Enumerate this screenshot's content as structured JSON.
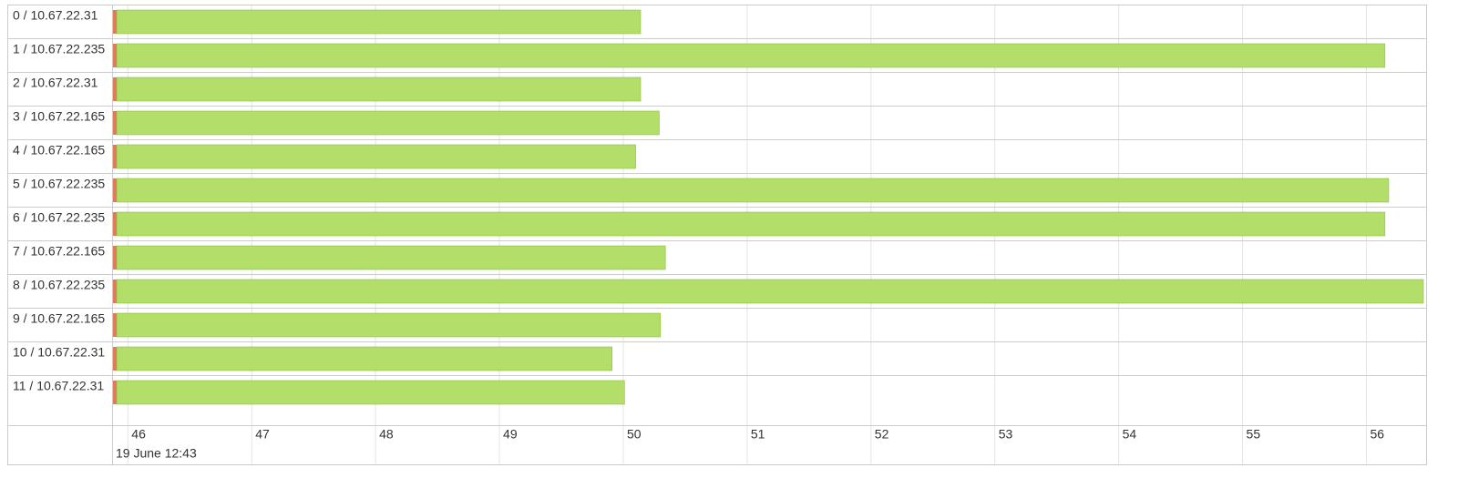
{
  "chart_data": {
    "type": "timeline",
    "categories": [
      "0 / 10.67.22.31",
      "1 / 10.67.22.235",
      "2 / 10.67.22.31",
      "3 / 10.67.22.165",
      "4 / 10.67.22.165",
      "5 / 10.67.22.235",
      "6 / 10.67.22.235",
      "7 / 10.67.22.165",
      "8 / 10.67.22.235",
      "9 / 10.67.22.165",
      "10 / 10.67.22.31",
      "11 / 10.67.22.31"
    ],
    "starts": [
      45.88,
      45.88,
      45.88,
      45.88,
      45.88,
      45.88,
      45.88,
      45.88,
      45.88,
      45.88,
      45.88,
      45.88
    ],
    "series": [
      {
        "color": "#e07b5a",
        "values": [
          0.03,
          0.03,
          0.03,
          0.03,
          0.03,
          0.03,
          0.03,
          0.03,
          0.03,
          0.03,
          0.03,
          0.03
        ]
      },
      {
        "color": "#b3de69",
        "values": [
          4.23,
          10.24,
          4.23,
          4.38,
          4.19,
          10.27,
          10.24,
          4.43,
          10.55,
          4.39,
          4.0,
          4.1
        ]
      }
    ],
    "xlim": [
      45.88,
      56.46
    ],
    "xticks": [
      46,
      47,
      48,
      49,
      50,
      51,
      52,
      53,
      54,
      55,
      56
    ],
    "x_annotation": "19 June 12:43",
    "grid": true
  }
}
